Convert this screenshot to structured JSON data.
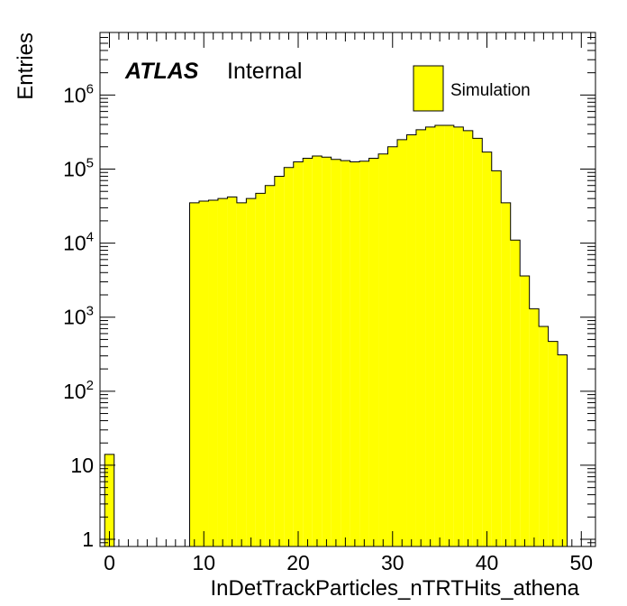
{
  "chart_data": {
    "type": "bar",
    "style": "step-histogram",
    "xlabel": "InDetTrackParticles_nTRTHits_athena",
    "ylabel": "Entries",
    "xlim": [
      -1,
      51.5
    ],
    "ylim": [
      0.8,
      7000000
    ],
    "y_scale": "log",
    "grid": false,
    "bin_width": 1,
    "bin_start": -0.5,
    "values": [
      14,
      0,
      0,
      0,
      0,
      0,
      0,
      0,
      0,
      35000,
      37000,
      38000,
      40000,
      42000,
      35000,
      40000,
      47000,
      60000,
      80000,
      105000,
      125000,
      140000,
      150000,
      145000,
      135000,
      130000,
      125000,
      128000,
      140000,
      160000,
      200000,
      250000,
      290000,
      340000,
      370000,
      390000,
      390000,
      370000,
      330000,
      260000,
      170000,
      95000,
      35000,
      11000,
      3600,
      1300,
      750,
      470,
      310
    ],
    "x_ticks": [
      {
        "value": 0,
        "label": "0"
      },
      {
        "value": 10,
        "label": "10"
      },
      {
        "value": 20,
        "label": "20"
      },
      {
        "value": 30,
        "label": "30"
      },
      {
        "value": 40,
        "label": "40"
      },
      {
        "value": 50,
        "label": "50"
      }
    ],
    "y_ticks": [
      {
        "value": 1,
        "label": "1"
      },
      {
        "value": 10,
        "label": "10"
      },
      {
        "value": 100,
        "base": "10",
        "exp": "2"
      },
      {
        "value": 1000,
        "base": "10",
        "exp": "3"
      },
      {
        "value": 10000,
        "base": "10",
        "exp": "4"
      },
      {
        "value": 100000,
        "base": "10",
        "exp": "5"
      },
      {
        "value": 1000000,
        "base": "10",
        "exp": "6"
      }
    ],
    "annotations": {
      "atlas": "ATLAS",
      "internal": "Internal"
    },
    "legend": {
      "placement": "top-right",
      "entries": [
        {
          "label": "Simulation",
          "color": "#ffff00"
        }
      ]
    },
    "fill_color": "#ffff00",
    "line_color": "#000000"
  }
}
